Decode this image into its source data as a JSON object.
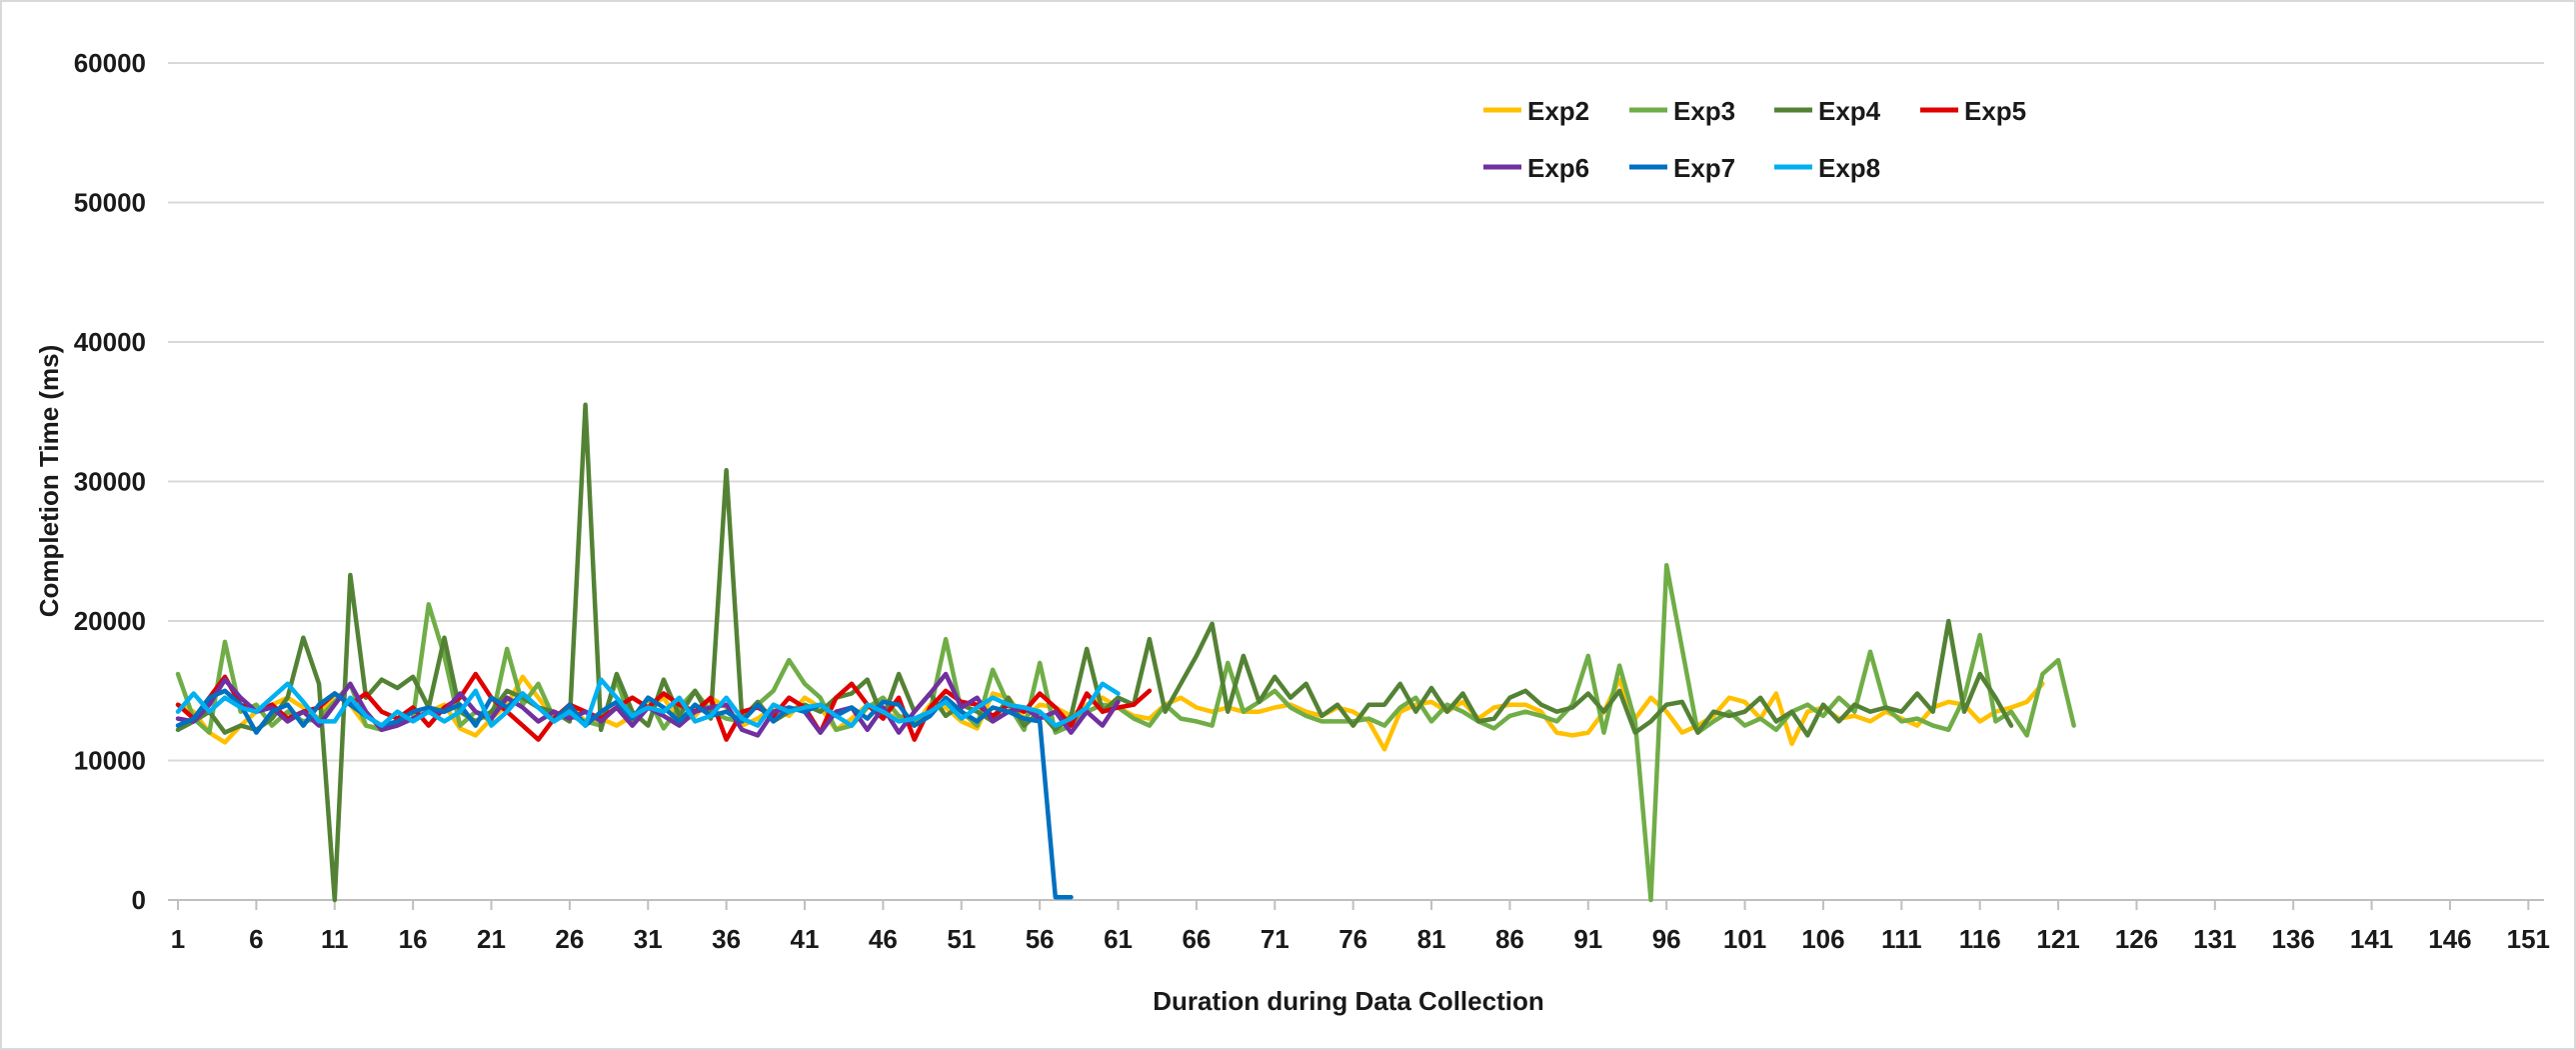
{
  "chart_data": {
    "type": "line",
    "title": "",
    "xlabel": "Duration during Data Collection",
    "ylabel": "Completion Time (ms)",
    "xlim": [
      1,
      152
    ],
    "ylim": [
      0,
      60000
    ],
    "yticks": [
      0,
      10000,
      20000,
      30000,
      40000,
      50000,
      60000
    ],
    "xticks": [
      1,
      6,
      11,
      16,
      21,
      26,
      31,
      36,
      41,
      46,
      51,
      56,
      61,
      66,
      71,
      76,
      81,
      86,
      91,
      96,
      101,
      106,
      111,
      116,
      121,
      126,
      131,
      136,
      141,
      146,
      151
    ],
    "grid": "horizontal",
    "legend_position": "top-right",
    "series": [
      {
        "name": "Exp2",
        "color": "#FFC000",
        "values": [
          14000,
          13500,
          12000,
          11300,
          12500,
          13500,
          14000,
          14500,
          13800,
          13000,
          14800,
          14000,
          12500,
          12300,
          12800,
          13000,
          13500,
          14000,
          12300,
          11800,
          13000,
          14000,
          16000,
          14500,
          13000,
          14000,
          12800,
          13000,
          12500,
          13200,
          13800,
          14500,
          12800,
          13200,
          14500,
          13800,
          12500,
          13000,
          13800,
          13200,
          14500,
          13800,
          12200,
          13000,
          14000,
          13500,
          13000,
          12500,
          14000,
          13800,
          12800,
          12300,
          14800,
          14500,
          13000,
          14000,
          13800,
          13200,
          14000,
          14500,
          13800,
          13200,
          13000,
          14000,
          14500,
          13800,
          13500,
          13800,
          13500,
          13500,
          13800,
          14000,
          13500,
          13200,
          13800,
          13500,
          12800,
          10800,
          13500,
          14000,
          14200,
          13500,
          14200,
          13000,
          13800,
          14000,
          14000,
          13500,
          12000,
          11800,
          12000,
          13500,
          15800,
          13000,
          14500,
          13500,
          12000,
          12500,
          13200,
          14500,
          14200,
          13000,
          14800,
          11200,
          13500,
          13800,
          13000,
          13200,
          12800,
          13500,
          13000,
          12500,
          13800,
          14200,
          14000,
          12800,
          13500,
          13800,
          14200,
          15500
        ]
      },
      {
        "name": "Exp3",
        "color": "#70AD47",
        "values": [
          16200,
          13000,
          12000,
          18500,
          13500,
          14000,
          12500,
          13500,
          12800,
          13000,
          14200,
          15500,
          12500,
          12200,
          12800,
          13000,
          21200,
          17500,
          12500,
          13500,
          12800,
          18000,
          14000,
          15500,
          13000,
          13200,
          12800,
          12500,
          15800,
          12500,
          14500,
          12300,
          13800,
          15000,
          13500,
          13000,
          12800,
          14000,
          15000,
          17200,
          15500,
          14500,
          12200,
          12500,
          13800,
          14500,
          13200,
          12800,
          13500,
          18700,
          13500,
          12500,
          16500,
          14000,
          12200,
          17000,
          12000,
          12500,
          13500,
          14000,
          13800,
          13000,
          12500,
          14000,
          13000,
          12800,
          12500,
          17000,
          13500,
          14200,
          15000,
          13800,
          13200,
          12800,
          12800,
          12800,
          13000,
          12500,
          13800,
          14500,
          12800,
          14000,
          13500,
          12800,
          12300,
          13200,
          13500,
          13200,
          12800,
          14000,
          17500,
          12000,
          16800,
          12800,
          0,
          24000,
          18000,
          12000,
          12800,
          13500,
          12500,
          13000,
          12200,
          13500,
          14000,
          13200,
          14500,
          13500,
          17800,
          13800,
          12800,
          13000,
          12500,
          12200,
          14500,
          19000,
          12800,
          13500,
          11800,
          16200,
          17200,
          12500
        ]
      },
      {
        "name": "Exp4",
        "color": "#548235",
        "values": [
          12200,
          12800,
          13500,
          12000,
          12500,
          12200,
          13000,
          14500,
          18800,
          15500,
          0,
          23300,
          14500,
          15800,
          15200,
          16000,
          13800,
          18800,
          13500,
          12800,
          13500,
          15000,
          14500,
          13800,
          13500,
          12800,
          35500,
          12200,
          16200,
          13500,
          12500,
          15800,
          13200,
          15000,
          13000,
          30800,
          13000,
          14200,
          12800,
          13500,
          14000,
          13500,
          14500,
          14800,
          15800,
          13000,
          16200,
          13500,
          14800,
          13200,
          14000,
          13500,
          12800,
          14500,
          12500,
          13500,
          12200,
          13200,
          18000,
          13500,
          14500,
          14000,
          18700,
          13500,
          15500,
          17500,
          19800,
          13500,
          17500,
          14200,
          16000,
          14500,
          15500,
          13200,
          14000,
          12500,
          14000,
          14000,
          15500,
          13500,
          15200,
          13500,
          14800,
          12800,
          13000,
          14500,
          15000,
          14000,
          13500,
          13800,
          14800,
          13500,
          15000,
          12000,
          12800,
          14000,
          14200,
          12000,
          13500,
          13200,
          13500,
          14500,
          12800,
          13500,
          11800,
          14000,
          12800,
          14000,
          13500,
          13800,
          13500,
          14800,
          13500,
          20000,
          13500,
          16200,
          14500,
          12500
        ]
      },
      {
        "name": "Exp5",
        "color": "#E00000",
        "values": [
          14000,
          13000,
          14500,
          16000,
          14000,
          13500,
          14000,
          13000,
          13500,
          13800,
          14800,
          14000,
          14800,
          13500,
          13000,
          13800,
          12500,
          13800,
          14500,
          16200,
          14500,
          13500,
          12500,
          11500,
          13000,
          14000,
          13500,
          13000,
          13800,
          14500,
          13800,
          14800,
          14000,
          13500,
          14500,
          11500,
          13500,
          13800,
          13200,
          14500,
          13800,
          12000,
          14500,
          15500,
          14000,
          13000,
          14500,
          11500,
          13800,
          15000,
          14200,
          14000,
          13200,
          14000,
          13500,
          14800,
          13800,
          12500,
          14800,
          13500,
          13800,
          14000,
          15000
        ]
      },
      {
        "name": "Exp6",
        "color": "#7030A0",
        "values": [
          13000,
          12800,
          14000,
          15800,
          14500,
          13500,
          13800,
          12800,
          13500,
          12500,
          14000,
          15500,
          13500,
          12200,
          12500,
          13000,
          13500,
          13500,
          14800,
          13500,
          13000,
          14500,
          13800,
          12800,
          13500,
          13000,
          13500,
          12800,
          13800,
          12500,
          13800,
          13200,
          12500,
          13500,
          13800,
          14000,
          12200,
          11800,
          13500,
          13800,
          13500,
          12000,
          13500,
          13800,
          12200,
          13800,
          12000,
          13500,
          14800,
          16200,
          13800,
          14500,
          12800,
          13500,
          13800,
          13000,
          13500,
          12000,
          13500,
          12500,
          14200
        ]
      },
      {
        "name": "Exp7",
        "color": "#0070C0",
        "values": [
          12500,
          13000,
          14500,
          15000,
          14000,
          12000,
          13500,
          14000,
          12500,
          14000,
          14800,
          14000,
          13200,
          12500,
          12800,
          13500,
          13800,
          13500,
          14000,
          12500,
          14500,
          13800,
          14800,
          13800,
          12800,
          14000,
          12500,
          13500,
          14200,
          13000,
          14500,
          13800,
          12800,
          14000,
          13200,
          13500,
          12800,
          14000,
          12800,
          13800,
          13500,
          14000,
          13200,
          13800,
          13000,
          14200,
          14000,
          12500,
          13200,
          14500,
          13500,
          12800,
          13800,
          13500,
          13000,
          12800,
          200,
          200
        ]
      },
      {
        "name": "Exp8",
        "color": "#00B0F0",
        "values": [
          13500,
          14800,
          13500,
          14500,
          13800,
          13500,
          14500,
          15500,
          14200,
          12800,
          12800,
          14500,
          13200,
          12500,
          13500,
          12800,
          13500,
          12800,
          13500,
          15000,
          12500,
          13500,
          14800,
          13800,
          12800,
          13500,
          12500,
          15800,
          14500,
          13200,
          13800,
          13500,
          14500,
          12800,
          13200,
          14500,
          13000,
          12500,
          14000,
          13500,
          13800,
          14000,
          13200,
          12500,
          14000,
          13500,
          12800,
          13000,
          13500,
          14200,
          13000,
          13800,
          14500,
          14000,
          13800,
          13500,
          12500,
          13000,
          13800,
          15500,
          14800
        ]
      }
    ]
  }
}
